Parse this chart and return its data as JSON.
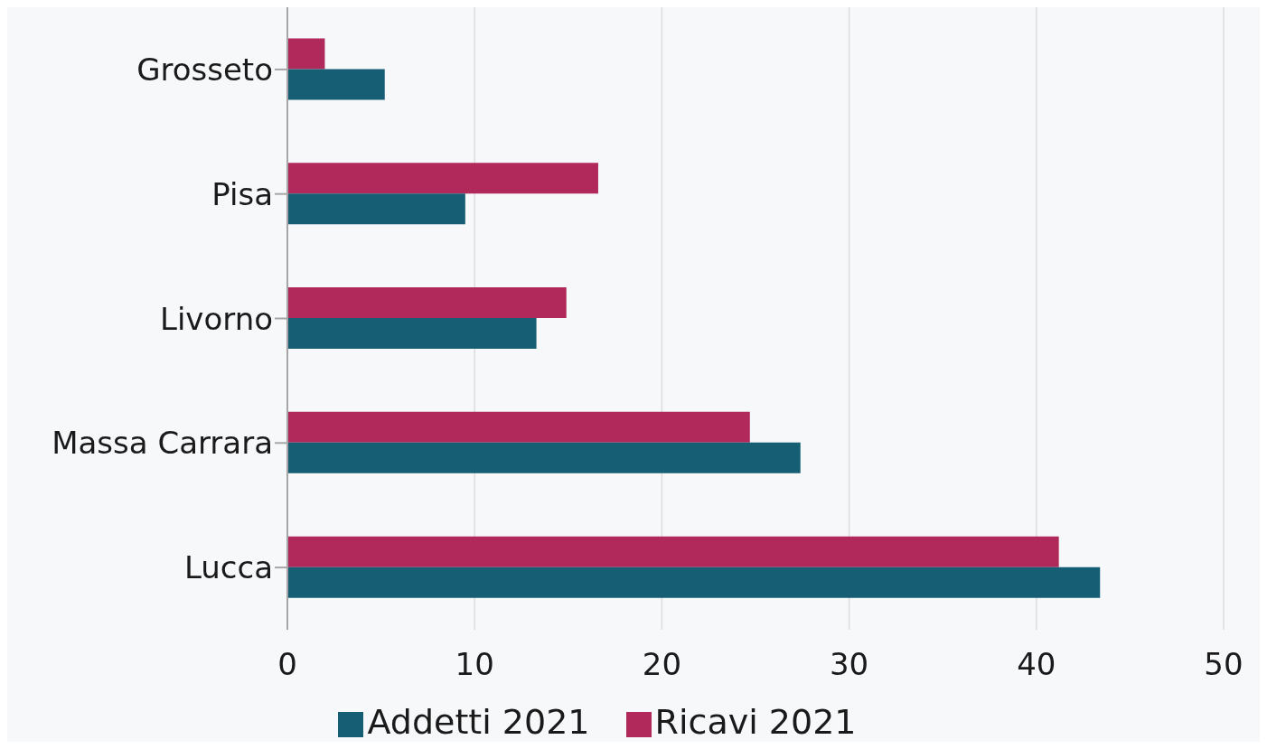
{
  "chart_data": {
    "type": "bar",
    "orientation": "horizontal",
    "categories": [
      "Grosseto",
      "Pisa",
      "Livorno",
      "Massa Carrara",
      "Lucca"
    ],
    "series": [
      {
        "name": "Ricavi 2021",
        "color": "#b0295a",
        "values": [
          2.0,
          16.6,
          14.9,
          24.7,
          41.2
        ]
      },
      {
        "name": "Addetti 2021",
        "color": "#165e74",
        "values": [
          5.2,
          9.5,
          13.3,
          27.4,
          43.4
        ]
      }
    ],
    "xlim": [
      0,
      50
    ],
    "xticks": [
      0,
      10,
      20,
      30,
      40,
      50
    ],
    "grid": "x",
    "legend": "bottom"
  }
}
